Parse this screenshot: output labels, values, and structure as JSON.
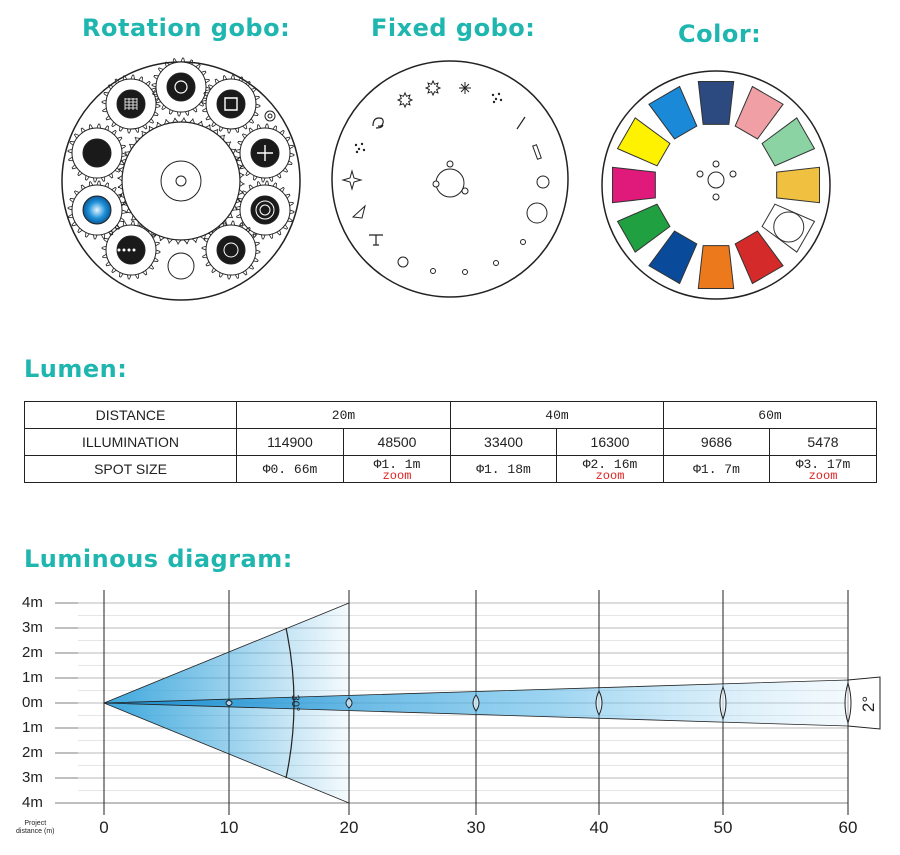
{
  "headings": {
    "rotation": "Rotation gobo:",
    "fixed": "Fixed gobo:",
    "color": "Color:",
    "lumen": "Lumen:",
    "luminous": "Luminous diagram:"
  },
  "colors": {
    "heading": "#1fb6b0",
    "beam": "#3aa6dc",
    "zoom_text": "#dd2222"
  },
  "color_wheel": [
    {
      "name": "pink",
      "hex": "#f0a0a4"
    },
    {
      "name": "light-green",
      "hex": "#8cd3a4"
    },
    {
      "name": "amber",
      "hex": "#f0c040"
    },
    {
      "name": "open",
      "hex": "#ffffff"
    },
    {
      "name": "red",
      "hex": "#d42a2a"
    },
    {
      "name": "orange",
      "hex": "#ec7a1c"
    },
    {
      "name": "dark-blue",
      "hex": "#0a4a9a"
    },
    {
      "name": "green",
      "hex": "#20a040"
    },
    {
      "name": "magenta",
      "hex": "#e01a7a"
    },
    {
      "name": "yellow",
      "hex": "#fff200"
    },
    {
      "name": "sky-blue",
      "hex": "#1a8ad8"
    },
    {
      "name": "navy",
      "hex": "#2c4a80"
    }
  ],
  "lumen_table": {
    "row_headers": [
      "DISTANCE",
      "ILLUMINATION",
      "SPOT SIZE"
    ],
    "distances": [
      "20m",
      "40m",
      "60m"
    ],
    "illumination": [
      "114900",
      "48500",
      "33400",
      "16300",
      "9686",
      "5478"
    ],
    "spot_size": [
      "Φ0. 66m",
      "Φ1. 1m",
      "Φ1. 18m",
      "Φ2. 16m",
      "Φ1. 7m",
      "Φ3. 17m"
    ],
    "zoom_label": "zoom"
  },
  "luminous": {
    "y_labels": [
      "4m",
      "3m",
      "2m",
      "1m",
      "0m",
      "1m",
      "2m",
      "3m",
      "4m"
    ],
    "x_labels": [
      "0",
      "10",
      "20",
      "30",
      "40",
      "50",
      "60"
    ],
    "project_distance_label": [
      "Project",
      "distance (m)"
    ],
    "wide_angle": "30°",
    "narrow_angle": "2°"
  }
}
